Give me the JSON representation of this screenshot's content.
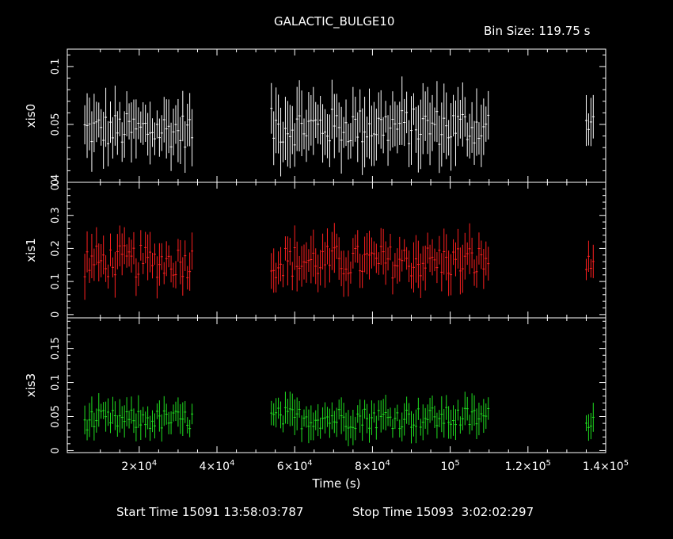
{
  "title": "GALACTIC_BULGE10",
  "bin_size_label": "Bin Size: 119.75 s",
  "start_time_label": "Start Time 15091 13:58:03:787",
  "stop_time_label": "Stop Time 15093  3:02:02:297",
  "chart_data": {
    "type": "scatter",
    "title": "GALACTIC_BULGE10",
    "xlabel": "Time (s)",
    "xlim": [
      1500,
      140000
    ],
    "x_ticks": [
      {
        "value": 20000,
        "mant": "2",
        "exp": "4"
      },
      {
        "value": 40000,
        "mant": "4",
        "exp": "4"
      },
      {
        "value": 60000,
        "mant": "6",
        "exp": "4"
      },
      {
        "value": 80000,
        "mant": "8",
        "exp": "4"
      },
      {
        "value": 100000,
        "mant": "10",
        "exp": "5",
        "plain": "10"
      },
      {
        "value": 120000,
        "mant": "1.2",
        "exp": "5"
      },
      {
        "value": 140000,
        "mant": "1.4",
        "exp": "5"
      }
    ],
    "panels": [
      {
        "name": "xis0",
        "ylabel": "xis0",
        "color": "#ffffff",
        "ylim": [
          0,
          0.115
        ],
        "yticks": [
          {
            "value": 0,
            "label": "0"
          },
          {
            "value": 0.05,
            "label": "0.05"
          },
          {
            "value": 0.1,
            "label": "0.1"
          }
        ],
        "segments": [
          {
            "x0": 6000,
            "x1": 34000,
            "mean": 0.045,
            "spread": 0.015,
            "err": 0.02
          },
          {
            "x0": 54000,
            "x1": 110000,
            "mean": 0.048,
            "spread": 0.016,
            "err": 0.022
          },
          {
            "x0": 135000,
            "x1": 137000,
            "mean": 0.05,
            "spread": 0.012,
            "err": 0.02
          }
        ]
      },
      {
        "name": "xis1",
        "ylabel": "xis1",
        "color": "#ff2020",
        "ylim": [
          -0.01,
          0.4
        ],
        "yticks": [
          {
            "value": 0,
            "label": "0"
          },
          {
            "value": 0.1,
            "label": "0.1"
          },
          {
            "value": 0.2,
            "label": "0.2"
          },
          {
            "value": 0.3,
            "label": "0.3"
          },
          {
            "value": 0.4,
            "label": "0.4"
          }
        ],
        "segments": [
          {
            "x0": 6000,
            "x1": 34000,
            "mean": 0.16,
            "spread": 0.05,
            "err": 0.05
          },
          {
            "x0": 54000,
            "x1": 110000,
            "mean": 0.16,
            "spread": 0.05,
            "err": 0.055
          },
          {
            "x0": 135000,
            "x1": 137000,
            "mean": 0.15,
            "spread": 0.03,
            "err": 0.04
          }
        ]
      },
      {
        "name": "xis3",
        "ylabel": "xis3",
        "color": "#20e020",
        "ylim": [
          -0.003,
          0.195
        ],
        "yticks": [
          {
            "value": 0,
            "label": "0"
          },
          {
            "value": 0.05,
            "label": "0.05"
          },
          {
            "value": 0.1,
            "label": "0.1"
          },
          {
            "value": 0.15,
            "label": "0.15"
          }
        ],
        "segments": [
          {
            "x0": 6000,
            "x1": 34000,
            "mean": 0.045,
            "spread": 0.015,
            "err": 0.018
          },
          {
            "x0": 54000,
            "x1": 110000,
            "mean": 0.048,
            "spread": 0.016,
            "err": 0.02
          },
          {
            "x0": 135000,
            "x1": 137000,
            "mean": 0.045,
            "spread": 0.012,
            "err": 0.016
          }
        ]
      }
    ]
  }
}
